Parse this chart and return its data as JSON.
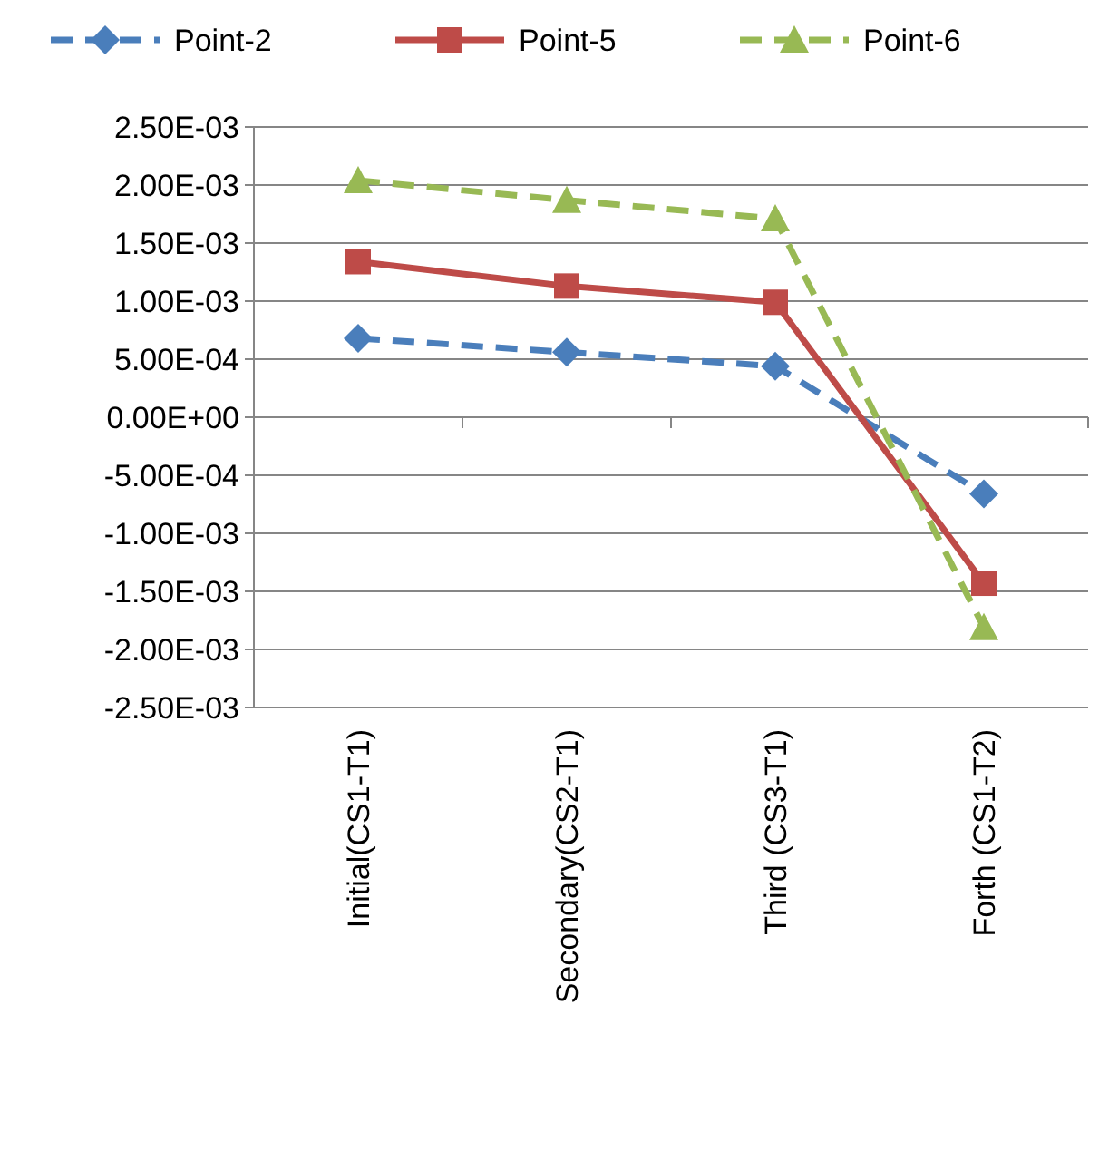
{
  "chart_data": {
    "type": "line",
    "categories": [
      "Initial(CS1-T1)",
      "Secondary(CS2-T1)",
      "Third (CS3-T1)",
      "Forth (CS1-T2)"
    ],
    "series": [
      {
        "name": "Point-2",
        "color": "#4a7ebb",
        "values": [
          0.00068,
          0.00056,
          0.00044,
          -0.00066
        ],
        "marker": "diamond",
        "line_style": "dashed"
      },
      {
        "name": "Point-5",
        "color": "#be4b48",
        "values": [
          0.00134,
          0.00113,
          0.00099,
          -0.00143
        ],
        "marker": "square",
        "line_style": "solid"
      },
      {
        "name": "Point-6",
        "color": "#98b954",
        "values": [
          0.00204,
          0.00187,
          0.00171,
          -0.00181
        ],
        "marker": "triangle",
        "line_style": "dashed"
      }
    ],
    "ylim": [
      -0.0025,
      0.0025
    ],
    "yticks": [
      {
        "value": 0.0025,
        "label": "2.50E-03"
      },
      {
        "value": 0.002,
        "label": "2.00E-03"
      },
      {
        "value": 0.0015,
        "label": "1.50E-03"
      },
      {
        "value": 0.001,
        "label": "1.00E-03"
      },
      {
        "value": 0.0005,
        "label": "5.00E-04"
      },
      {
        "value": 0,
        "label": "0.00E+00"
      },
      {
        "value": -0.0005,
        "label": "-5.00E-04"
      },
      {
        "value": -0.001,
        "label": "-1.00E-03"
      },
      {
        "value": -0.0015,
        "label": "-1.50E-03"
      },
      {
        "value": -0.002,
        "label": "-2.00E-03"
      },
      {
        "value": -0.0025,
        "label": "-2.50E-03"
      }
    ],
    "grid": "y",
    "legend": "top"
  }
}
